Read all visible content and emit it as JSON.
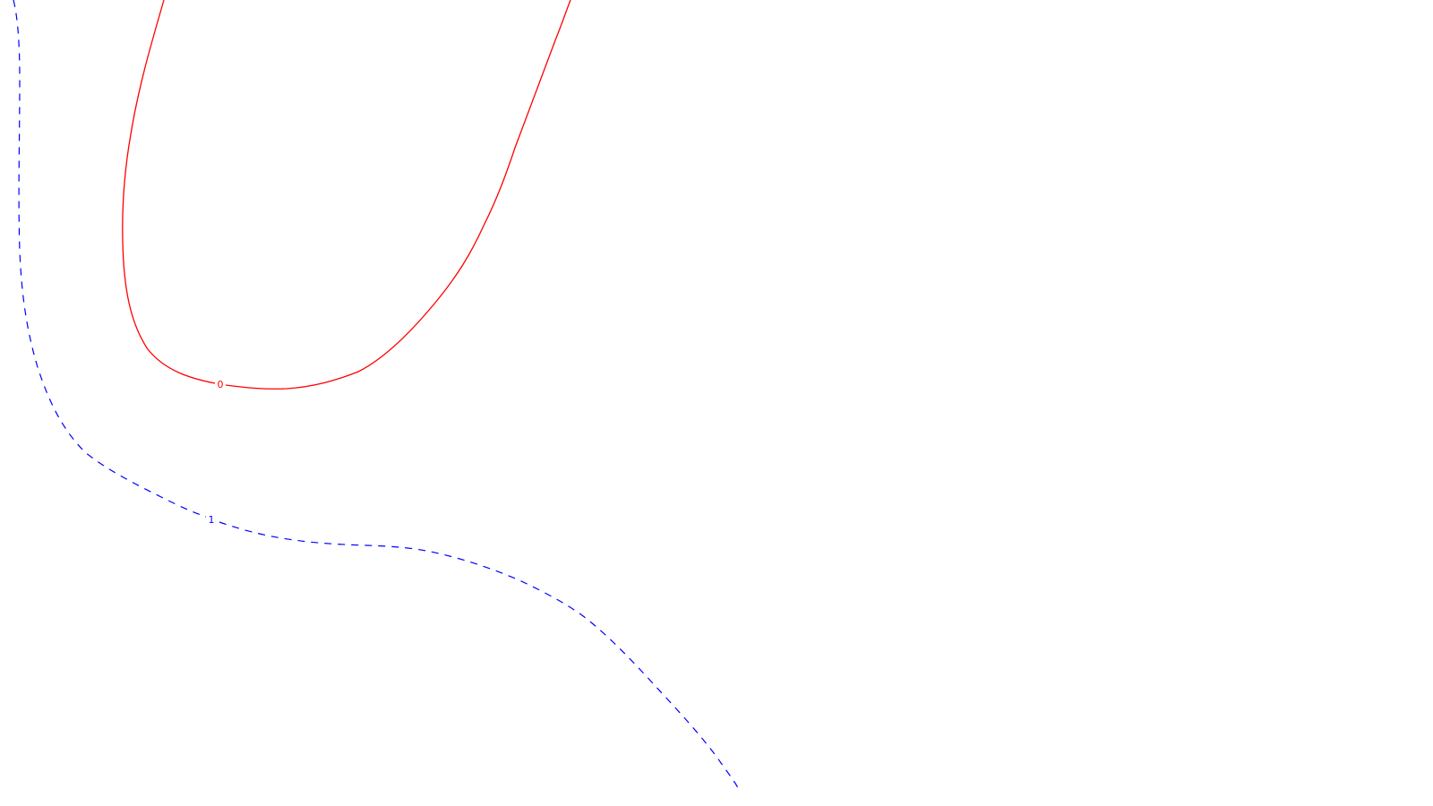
{
  "chart_data": {
    "type": "contour",
    "title": "",
    "xlabel": "",
    "ylabel": "",
    "grid": false,
    "legend": "none",
    "contours": [
      {
        "level_label": "0",
        "color": "#ff0000",
        "style": "solid"
      },
      {
        "level_label": "1",
        "color": "#0000ff",
        "style": "dashed"
      }
    ]
  }
}
